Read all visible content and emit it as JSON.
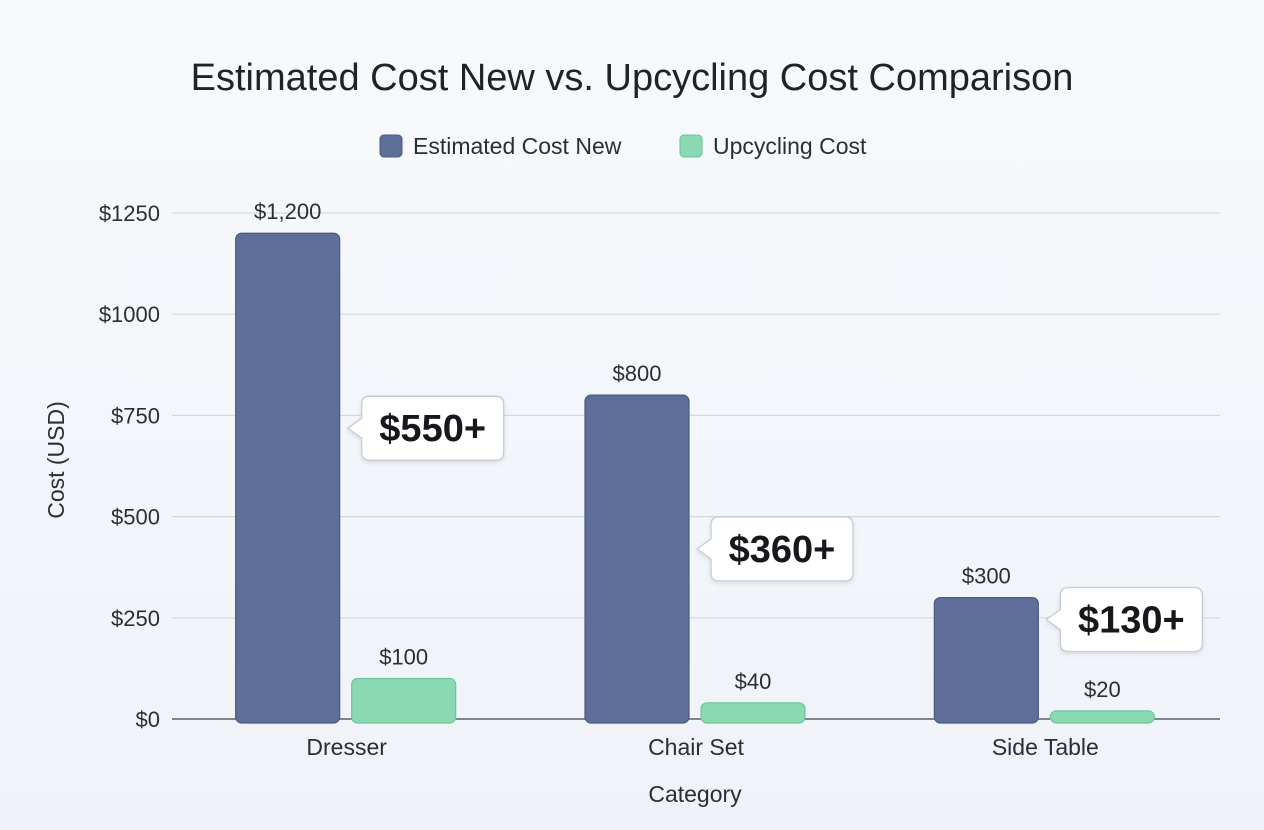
{
  "chart_data": {
    "type": "bar",
    "title": "Estimated Cost New vs. Upcycling Cost Comparison",
    "xlabel": "Category",
    "ylabel": "Cost (USD)",
    "ylim": [
      0,
      1250
    ],
    "yticks": [
      {
        "value": 0,
        "label": "$0"
      },
      {
        "value": 250,
        "label": "$250"
      },
      {
        "value": 500,
        "label": "$500"
      },
      {
        "value": 750,
        "label": "$750"
      },
      {
        "value": 1000,
        "label": "$1000"
      },
      {
        "value": 1250,
        "label": "$1250"
      }
    ],
    "grid": true,
    "legend_position": "top-center",
    "categories": [
      "Dresser",
      "Chair Set",
      "Side Table"
    ],
    "series": [
      {
        "name": "Estimated Cost New",
        "color": "#5d6f99",
        "values": [
          1200,
          800,
          300
        ],
        "labels": [
          "$1,200",
          "$800",
          "$300"
        ]
      },
      {
        "name": "Upcycling Cost",
        "color": "#8ad9b2",
        "values": [
          100,
          40,
          20
        ],
        "labels": [
          "$100",
          "$40",
          "$20"
        ]
      }
    ],
    "annotations": [
      {
        "category": "Dresser",
        "text": "$550+"
      },
      {
        "category": "Chair Set",
        "text": "$360+"
      },
      {
        "category": "Side Table",
        "text": "$130+"
      }
    ]
  }
}
